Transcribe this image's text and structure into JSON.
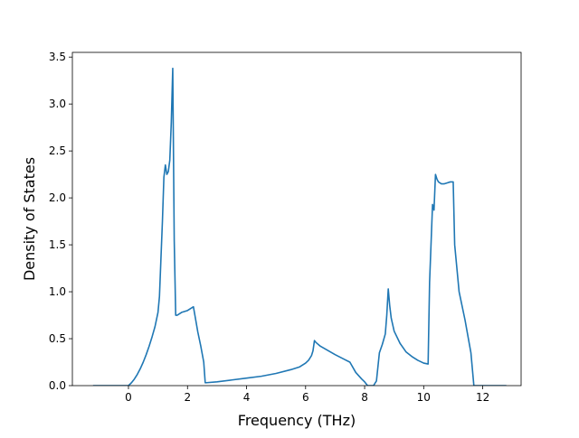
{
  "chart_data": {
    "type": "line",
    "title": "",
    "xlabel": "Frequency (THz)",
    "ylabel": "Density of States",
    "xlim": [
      -1.9,
      13.3
    ],
    "ylim": [
      0,
      3.55
    ],
    "xticks": [
      0,
      2,
      4,
      6,
      8,
      10,
      12
    ],
    "xtick_labels": [
      "0",
      "2",
      "4",
      "6",
      "8",
      "10",
      "12"
    ],
    "yticks": [
      0.0,
      0.5,
      1.0,
      1.5,
      2.0,
      2.5,
      3.0,
      3.5
    ],
    "ytick_labels": [
      "0.0",
      "0.5",
      "1.0",
      "1.5",
      "2.0",
      "2.5",
      "3.0",
      "3.5"
    ],
    "grid": false,
    "legend": "none",
    "series": [
      {
        "color": "#1f77b4",
        "x": [
          -1.2,
          0.0,
          0.1,
          0.2,
          0.3,
          0.4,
          0.5,
          0.6,
          0.7,
          0.8,
          0.9,
          1.0,
          1.05,
          1.1,
          1.15,
          1.2,
          1.25,
          1.3,
          1.35,
          1.4,
          1.45,
          1.5,
          1.55,
          1.6,
          1.65,
          1.8,
          2.0,
          2.2,
          2.25,
          2.35,
          2.45,
          2.55,
          2.6,
          3.0,
          3.5,
          4.0,
          4.5,
          5.0,
          5.5,
          5.8,
          6.0,
          6.1,
          6.2,
          6.25,
          6.3,
          6.35,
          6.5,
          7.0,
          7.5,
          7.7,
          7.9,
          8.0,
          8.1,
          8.2,
          8.3,
          8.4,
          8.5,
          8.6,
          8.7,
          8.75,
          8.8,
          8.85,
          8.9,
          9.0,
          9.2,
          9.4,
          9.6,
          9.8,
          10.0,
          10.15,
          10.2,
          10.3,
          10.35,
          10.4,
          10.45,
          10.5,
          10.6,
          10.7,
          10.8,
          10.9,
          11.0,
          11.05,
          11.2,
          11.4,
          11.6,
          11.7,
          11.8,
          12.0,
          12.8
        ],
        "y": [
          0.0,
          0.0,
          0.03,
          0.07,
          0.12,
          0.18,
          0.25,
          0.33,
          0.42,
          0.52,
          0.63,
          0.78,
          0.95,
          1.35,
          1.75,
          2.22,
          2.35,
          2.25,
          2.28,
          2.4,
          2.8,
          3.38,
          1.55,
          0.75,
          0.75,
          0.78,
          0.8,
          0.84,
          0.75,
          0.57,
          0.42,
          0.25,
          0.03,
          0.04,
          0.06,
          0.08,
          0.1,
          0.13,
          0.17,
          0.2,
          0.24,
          0.27,
          0.32,
          0.37,
          0.48,
          0.46,
          0.42,
          0.33,
          0.25,
          0.14,
          0.07,
          0.04,
          0.0,
          0.0,
          0.0,
          0.05,
          0.35,
          0.44,
          0.55,
          0.75,
          1.03,
          0.85,
          0.72,
          0.58,
          0.45,
          0.36,
          0.31,
          0.27,
          0.24,
          0.23,
          1.1,
          1.93,
          1.87,
          2.25,
          2.2,
          2.17,
          2.15,
          2.15,
          2.16,
          2.17,
          2.17,
          1.5,
          1.0,
          0.7,
          0.35,
          0.0,
          0.0,
          0.0,
          0.0
        ]
      }
    ]
  }
}
